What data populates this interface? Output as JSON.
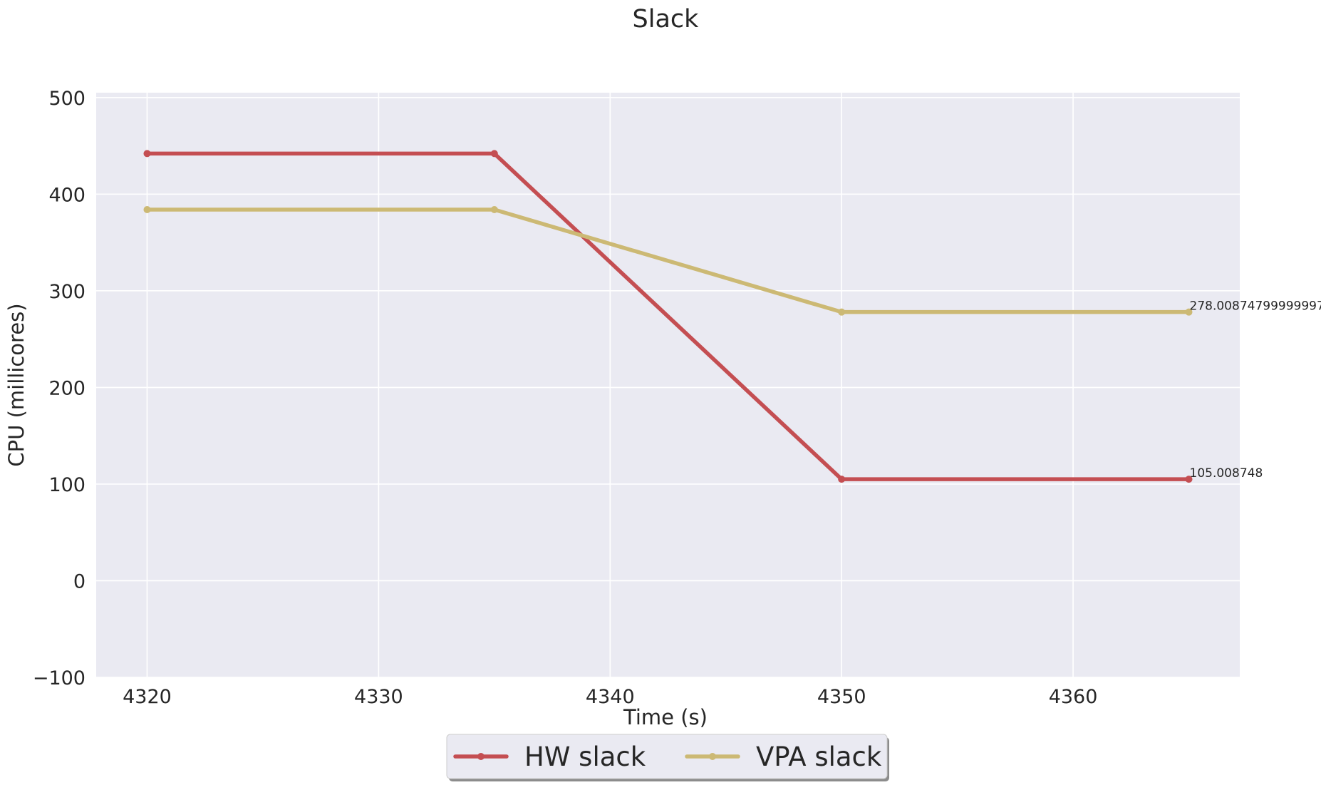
{
  "chart_data": {
    "type": "line",
    "title": "Slack",
    "xlabel": "Time (s)",
    "ylabel": "CPU (millicores)",
    "xlim": [
      4317.8,
      4367.2
    ],
    "ylim": [
      -100,
      505
    ],
    "xticks": [
      4320,
      4330,
      4340,
      4350,
      4360
    ],
    "yticks": [
      -100,
      0,
      100,
      200,
      300,
      400,
      500
    ],
    "xtick_labels": [
      "4320",
      "4330",
      "4340",
      "4350",
      "4360"
    ],
    "ytick_labels": [
      "−100",
      "0",
      "100",
      "200",
      "300",
      "400",
      "500"
    ],
    "grid": true,
    "legend_position": "bottom-center",
    "series": [
      {
        "name": "HW slack",
        "color": "#c44e52",
        "x": [
          4320,
          4335,
          4350,
          4365
        ],
        "y": [
          442,
          442,
          105.008748,
          105.008748
        ],
        "end_label": "105.008748"
      },
      {
        "name": "VPA slack",
        "color": "#ccb974",
        "x": [
          4320,
          4335,
          4350,
          4365
        ],
        "y": [
          384,
          384,
          278.00874799999997,
          278.00874799999997
        ],
        "end_label": "278.00874799999997"
      }
    ]
  }
}
